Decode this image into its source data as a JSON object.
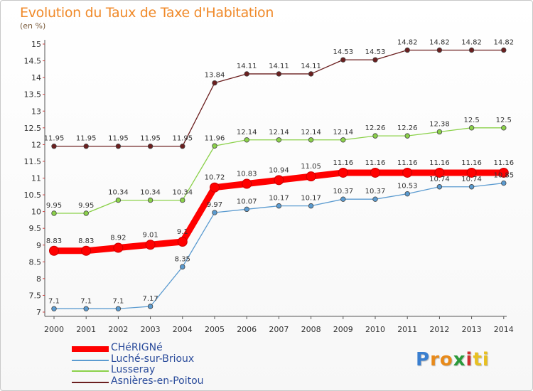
{
  "header": {
    "title": "Evolution du Taux de Taxe d'Habitation",
    "subtitle": "(en %)"
  },
  "logo": {
    "text": "Proxiti",
    "letters": [
      "P",
      "r",
      "o",
      "x",
      "i",
      "t",
      "i"
    ],
    "colors": [
      "#3a7fd0",
      "#e88a1a",
      "#e88a1a",
      "#2a9a3a",
      "#d03030",
      "#e8c020",
      "#e8c020"
    ]
  },
  "chart_data": {
    "type": "line",
    "x": [
      "2000",
      "2001",
      "2002",
      "2003",
      "2004",
      "2005",
      "2006",
      "2007",
      "2008",
      "2009",
      "2010",
      "2011",
      "2012",
      "2013",
      "2014"
    ],
    "ylim": [
      7,
      15
    ],
    "yticks": [
      "7",
      "7.5",
      "8",
      "8.5",
      "9",
      "9.5",
      "10",
      "10.5",
      "11",
      "11.5",
      "12",
      "12.5",
      "13",
      "13.5",
      "14",
      "14.5",
      "15"
    ],
    "grid": false,
    "legend_position": "bottom-left",
    "series": [
      {
        "name": "CHéRIGNé",
        "color": "#ff0000",
        "values": [
          8.83,
          8.83,
          8.92,
          9.01,
          9.1,
          10.72,
          10.83,
          10.94,
          11.05,
          11.16,
          11.16,
          11.16,
          11.16,
          11.16,
          11.16
        ],
        "labels": [
          "8.83",
          "8.83",
          "8.92",
          "9.01",
          "9.1",
          "10.72",
          "10.83",
          "10.94",
          "11.05",
          "11.16",
          "11.16",
          "11.16",
          "11.16",
          "11.16",
          "11.16"
        ]
      },
      {
        "name": "Luché-sur-Brioux",
        "color": "#5b9bd0",
        "values": [
          7.1,
          7.1,
          7.1,
          7.17,
          8.35,
          9.97,
          10.07,
          10.17,
          10.17,
          10.37,
          10.37,
          10.53,
          10.74,
          10.74,
          10.85
        ],
        "labels": [
          "7.1",
          "7.1",
          "7.1",
          "7.17",
          "8.35",
          "9.97",
          "10.07",
          "10.17",
          "10.17",
          "10.37",
          "10.37",
          "10.53",
          "10.74",
          "10.74",
          "10.85"
        ]
      },
      {
        "name": "Lusseray",
        "color": "#8bd14a",
        "values": [
          9.95,
          9.95,
          10.34,
          10.34,
          10.34,
          11.96,
          12.14,
          12.14,
          12.14,
          12.14,
          12.26,
          12.26,
          12.38,
          12.5,
          12.5
        ],
        "labels": [
          "9.95",
          "9.95",
          "10.34",
          "10.34",
          "10.34",
          "11.96",
          "12.14",
          "12.14",
          "12.14",
          "12.14",
          "12.26",
          "12.26",
          "12.38",
          "12.5",
          "12.5"
        ]
      },
      {
        "name": "Asnières-en-Poitou",
        "color": "#6b1f1f",
        "values": [
          11.95,
          11.95,
          11.95,
          11.95,
          11.95,
          13.84,
          14.11,
          14.11,
          14.11,
          14.53,
          14.53,
          14.82,
          14.82,
          14.82,
          14.82
        ],
        "labels": [
          "11.95",
          "11.95",
          "11.95",
          "11.95",
          "11.95",
          "13.84",
          "14.11",
          "14.11",
          "14.11",
          "14.53",
          "14.53",
          "14.82",
          "14.82",
          "14.82",
          "14.82"
        ]
      }
    ]
  }
}
